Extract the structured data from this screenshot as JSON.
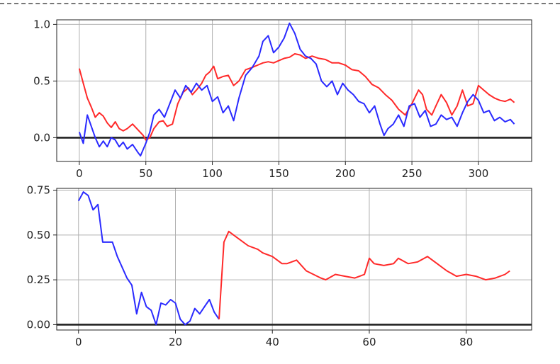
{
  "colors": {
    "red": "#ff2a2a",
    "blue": "#2a2aff",
    "grid": "#b0b0b0",
    "zero_line": "#222222",
    "frame": "#222222"
  },
  "chart_data": [
    {
      "type": "line",
      "title": "",
      "xlabel": "",
      "ylabel": "",
      "xlim": [
        -17,
        340
      ],
      "ylim": [
        -0.21,
        1.04
      ],
      "grid": true,
      "x_ticks": [
        0,
        50,
        100,
        150,
        200,
        250,
        300
      ],
      "x_tick_labels": [
        "0",
        "50",
        "100",
        "150",
        "200",
        "250",
        "300"
      ],
      "y_ticks": [
        0.0,
        0.5,
        1.0
      ],
      "y_tick_labels": [
        "0.0",
        "0.5",
        "1.0"
      ],
      "hline": 0,
      "series": [
        {
          "color": "#ff2a2a",
          "x": [
            0,
            3,
            6,
            9,
            12,
            15,
            18,
            21,
            24,
            27,
            30,
            33,
            36,
            40,
            44,
            48,
            50,
            53,
            56,
            60,
            63,
            66,
            70,
            74,
            78,
            82,
            85,
            88,
            92,
            95,
            98,
            101,
            104,
            108,
            112,
            116,
            120,
            125,
            130,
            134,
            138,
            142,
            146,
            150,
            154,
            158,
            162,
            166,
            170,
            175,
            180,
            185,
            190,
            195,
            200,
            205,
            210,
            215,
            220,
            225,
            230,
            235,
            240,
            245,
            250,
            255,
            258,
            261,
            265,
            268,
            272,
            276,
            280,
            284,
            288,
            292,
            296,
            300,
            304,
            308,
            312,
            316,
            320,
            324,
            327
          ],
          "y": [
            0.61,
            0.48,
            0.35,
            0.27,
            0.18,
            0.22,
            0.19,
            0.13,
            0.09,
            0.14,
            0.08,
            0.06,
            0.08,
            0.12,
            0.07,
            0.02,
            -0.02,
            0.0,
            0.08,
            0.14,
            0.15,
            0.1,
            0.12,
            0.3,
            0.4,
            0.44,
            0.38,
            0.42,
            0.48,
            0.55,
            0.58,
            0.63,
            0.52,
            0.54,
            0.55,
            0.46,
            0.5,
            0.6,
            0.62,
            0.64,
            0.66,
            0.67,
            0.66,
            0.68,
            0.7,
            0.71,
            0.74,
            0.73,
            0.7,
            0.72,
            0.7,
            0.69,
            0.66,
            0.66,
            0.64,
            0.6,
            0.59,
            0.54,
            0.47,
            0.44,
            0.38,
            0.33,
            0.25,
            0.2,
            0.3,
            0.42,
            0.38,
            0.25,
            0.2,
            0.28,
            0.38,
            0.31,
            0.2,
            0.28,
            0.42,
            0.28,
            0.3,
            0.46,
            0.42,
            0.38,
            0.35,
            0.33,
            0.32,
            0.34,
            0.31
          ]
        },
        {
          "color": "#2a2aff",
          "x": [
            0,
            3,
            6,
            9,
            12,
            15,
            18,
            21,
            24,
            27,
            30,
            33,
            36,
            40,
            44,
            46,
            50,
            53,
            56,
            60,
            64,
            68,
            72,
            76,
            80,
            84,
            88,
            92,
            96,
            100,
            104,
            108,
            112,
            116,
            120,
            125,
            130,
            135,
            138,
            142,
            146,
            150,
            154,
            158,
            162,
            166,
            170,
            174,
            178,
            182,
            186,
            190,
            194,
            198,
            202,
            206,
            210,
            214,
            218,
            222,
            226,
            229,
            232,
            236,
            240,
            244,
            248,
            252,
            256,
            260,
            264,
            268,
            272,
            276,
            280,
            284,
            288,
            292,
            296,
            300,
            304,
            308,
            312,
            316,
            320,
            324,
            327
          ],
          "y": [
            0.05,
            -0.05,
            0.2,
            0.1,
            0.0,
            -0.08,
            -0.03,
            -0.08,
            0.0,
            -0.02,
            -0.08,
            -0.04,
            -0.1,
            -0.06,
            -0.13,
            -0.16,
            -0.05,
            0.05,
            0.2,
            0.25,
            0.18,
            0.3,
            0.42,
            0.35,
            0.46,
            0.4,
            0.48,
            0.42,
            0.46,
            0.32,
            0.36,
            0.22,
            0.28,
            0.15,
            0.35,
            0.55,
            0.62,
            0.72,
            0.85,
            0.9,
            0.75,
            0.8,
            0.88,
            1.01,
            0.92,
            0.78,
            0.72,
            0.7,
            0.65,
            0.5,
            0.45,
            0.5,
            0.38,
            0.48,
            0.42,
            0.38,
            0.32,
            0.3,
            0.22,
            0.28,
            0.12,
            0.02,
            0.08,
            0.12,
            0.2,
            0.1,
            0.28,
            0.3,
            0.18,
            0.24,
            0.1,
            0.12,
            0.2,
            0.16,
            0.18,
            0.1,
            0.22,
            0.32,
            0.38,
            0.33,
            0.22,
            0.24,
            0.15,
            0.18,
            0.14,
            0.16,
            0.12
          ]
        }
      ]
    },
    {
      "type": "line",
      "title": "",
      "xlabel": "",
      "ylabel": "",
      "xlim": [
        -4.5,
        93.5
      ],
      "ylim": [
        -0.03,
        0.76
      ],
      "grid": true,
      "x_ticks": [
        0,
        20,
        40,
        60,
        80
      ],
      "x_tick_labels": [
        "0",
        "20",
        "40",
        "60",
        "80"
      ],
      "y_ticks": [
        0.0,
        0.25,
        0.5,
        0.75
      ],
      "y_tick_labels": [
        "0.00",
        "0.25",
        "0.50",
        "0.75"
      ],
      "hline": 0,
      "series": [
        {
          "color": "#2a2aff",
          "x": [
            0,
            1,
            2,
            3,
            4,
            5,
            6,
            7,
            8,
            9,
            10,
            11,
            12,
            13,
            14,
            15,
            16,
            17,
            18,
            19,
            20,
            21,
            22,
            23,
            24,
            25,
            26,
            27,
            28,
            29
          ],
          "y": [
            0.69,
            0.74,
            0.72,
            0.64,
            0.67,
            0.46,
            0.46,
            0.46,
            0.38,
            0.32,
            0.26,
            0.22,
            0.06,
            0.18,
            0.1,
            0.08,
            0.0,
            0.12,
            0.11,
            0.14,
            0.12,
            0.03,
            0.0,
            0.02,
            0.09,
            0.06,
            0.1,
            0.14,
            0.07,
            0.03
          ]
        },
        {
          "color": "#ff2a2a",
          "x": [
            29,
            30,
            31,
            33,
            35,
            37,
            38,
            40,
            42,
            43,
            45,
            47,
            50,
            51,
            53,
            55,
            57,
            59,
            60,
            61,
            63,
            65,
            66,
            68,
            70,
            72,
            74,
            76,
            78,
            80,
            82,
            84,
            86,
            88,
            89
          ],
          "y": [
            0.03,
            0.46,
            0.52,
            0.48,
            0.44,
            0.42,
            0.4,
            0.38,
            0.34,
            0.34,
            0.36,
            0.3,
            0.26,
            0.25,
            0.28,
            0.27,
            0.26,
            0.28,
            0.37,
            0.34,
            0.33,
            0.34,
            0.37,
            0.34,
            0.35,
            0.38,
            0.34,
            0.3,
            0.27,
            0.28,
            0.27,
            0.25,
            0.26,
            0.28,
            0.3
          ]
        }
      ]
    }
  ]
}
